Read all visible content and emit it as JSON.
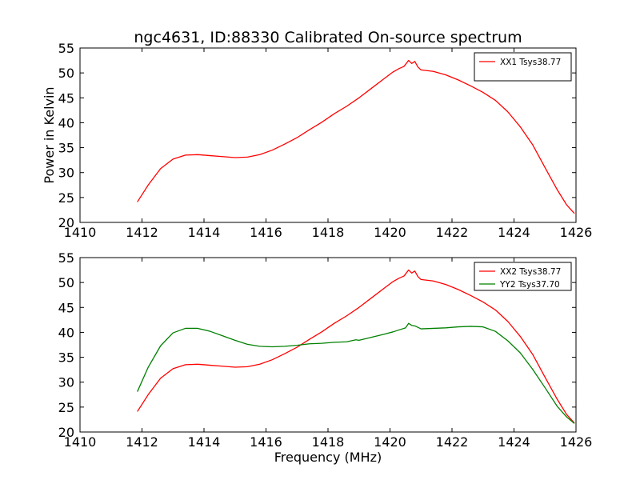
{
  "figure": {
    "title": "ngc4631, ID:88330 Calibrated On-source spectrum",
    "xlabel": "Frequency (MHz)",
    "ylabel": "Power in Kelvin"
  },
  "colors": {
    "xx": "#ff0000",
    "yy": "#008000"
  },
  "chart_data": [
    {
      "type": "line",
      "title": "ngc4631, ID:88330 Calibrated On-source spectrum",
      "ylabel": "Power in Kelvin",
      "xlabel": "",
      "xlim": [
        1410,
        1426
      ],
      "ylim": [
        20,
        55
      ],
      "xticks": [
        1410,
        1412,
        1414,
        1416,
        1418,
        1420,
        1422,
        1424,
        1426
      ],
      "yticks": [
        20,
        25,
        30,
        35,
        40,
        45,
        50,
        55
      ],
      "legend_position": "top-right",
      "grid": false,
      "series": [
        {
          "name": "XX1 Tsys38.77",
          "color": "#ff0000",
          "x": [
            1411.85,
            1412.2,
            1412.6,
            1413.0,
            1413.4,
            1413.8,
            1414.2,
            1414.6,
            1415.0,
            1415.4,
            1415.8,
            1416.2,
            1416.6,
            1417.0,
            1417.4,
            1417.8,
            1418.2,
            1418.6,
            1419.0,
            1419.4,
            1419.8,
            1420.1,
            1420.3,
            1420.45,
            1420.6,
            1420.7,
            1420.8,
            1420.9,
            1421.0,
            1421.4,
            1421.8,
            1422.2,
            1422.6,
            1423.0,
            1423.4,
            1423.8,
            1424.2,
            1424.6,
            1425.0,
            1425.4,
            1425.7,
            1425.95
          ],
          "y": [
            24.1,
            27.5,
            30.8,
            32.7,
            33.5,
            33.6,
            33.4,
            33.2,
            33.0,
            33.1,
            33.6,
            34.5,
            35.7,
            37.0,
            38.6,
            40.1,
            41.8,
            43.3,
            45.0,
            46.9,
            48.8,
            50.2,
            50.9,
            51.3,
            52.5,
            51.9,
            52.3,
            51.2,
            50.6,
            50.3,
            49.6,
            48.6,
            47.4,
            46.1,
            44.5,
            42.2,
            39.2,
            35.6,
            31.0,
            26.5,
            23.5,
            21.8
          ]
        }
      ]
    },
    {
      "type": "line",
      "title": "",
      "ylabel": "",
      "xlabel": "Frequency (MHz)",
      "xlim": [
        1410,
        1426
      ],
      "ylim": [
        20,
        55
      ],
      "xticks": [
        1410,
        1412,
        1414,
        1416,
        1418,
        1420,
        1422,
        1424,
        1426
      ],
      "yticks": [
        20,
        25,
        30,
        35,
        40,
        45,
        50,
        55
      ],
      "legend_position": "top-right",
      "grid": false,
      "series": [
        {
          "name": "XX2 Tsys38.77",
          "color": "#ff0000",
          "x": [
            1411.85,
            1412.2,
            1412.6,
            1413.0,
            1413.4,
            1413.8,
            1414.2,
            1414.6,
            1415.0,
            1415.4,
            1415.8,
            1416.2,
            1416.6,
            1417.0,
            1417.4,
            1417.8,
            1418.2,
            1418.6,
            1419.0,
            1419.4,
            1419.8,
            1420.1,
            1420.3,
            1420.45,
            1420.6,
            1420.7,
            1420.8,
            1420.9,
            1421.0,
            1421.4,
            1421.8,
            1422.2,
            1422.6,
            1423.0,
            1423.4,
            1423.8,
            1424.2,
            1424.6,
            1425.0,
            1425.4,
            1425.7,
            1425.95
          ],
          "y": [
            24.1,
            27.5,
            30.8,
            32.7,
            33.5,
            33.6,
            33.4,
            33.2,
            33.0,
            33.1,
            33.6,
            34.5,
            35.7,
            37.0,
            38.6,
            40.1,
            41.8,
            43.3,
            45.0,
            46.9,
            48.8,
            50.2,
            50.9,
            51.3,
            52.5,
            51.9,
            52.3,
            51.2,
            50.6,
            50.3,
            49.6,
            48.6,
            47.4,
            46.1,
            44.5,
            42.2,
            39.2,
            35.6,
            31.0,
            26.5,
            23.5,
            21.8
          ]
        },
        {
          "name": "YY2 Tsys37.70",
          "color": "#008000",
          "x": [
            1411.85,
            1412.2,
            1412.6,
            1413.0,
            1413.4,
            1413.8,
            1414.2,
            1414.6,
            1415.0,
            1415.4,
            1415.8,
            1416.2,
            1416.6,
            1417.0,
            1417.4,
            1417.8,
            1418.2,
            1418.6,
            1418.9,
            1419.0,
            1419.4,
            1419.8,
            1420.1,
            1420.3,
            1420.5,
            1420.6,
            1420.7,
            1420.8,
            1421.0,
            1421.4,
            1421.8,
            1422.2,
            1422.6,
            1423.0,
            1423.4,
            1423.8,
            1424.2,
            1424.6,
            1425.0,
            1425.4,
            1425.7,
            1425.95
          ],
          "y": [
            28.1,
            33.0,
            37.3,
            39.9,
            40.8,
            40.8,
            40.2,
            39.3,
            38.4,
            37.6,
            37.2,
            37.1,
            37.2,
            37.4,
            37.7,
            37.8,
            38.0,
            38.1,
            38.5,
            38.4,
            39.0,
            39.6,
            40.1,
            40.5,
            40.9,
            41.8,
            41.4,
            41.3,
            40.7,
            40.8,
            40.9,
            41.1,
            41.2,
            41.1,
            40.2,
            38.3,
            35.9,
            32.6,
            28.9,
            25.1,
            23.0,
            21.7
          ]
        }
      ]
    }
  ]
}
